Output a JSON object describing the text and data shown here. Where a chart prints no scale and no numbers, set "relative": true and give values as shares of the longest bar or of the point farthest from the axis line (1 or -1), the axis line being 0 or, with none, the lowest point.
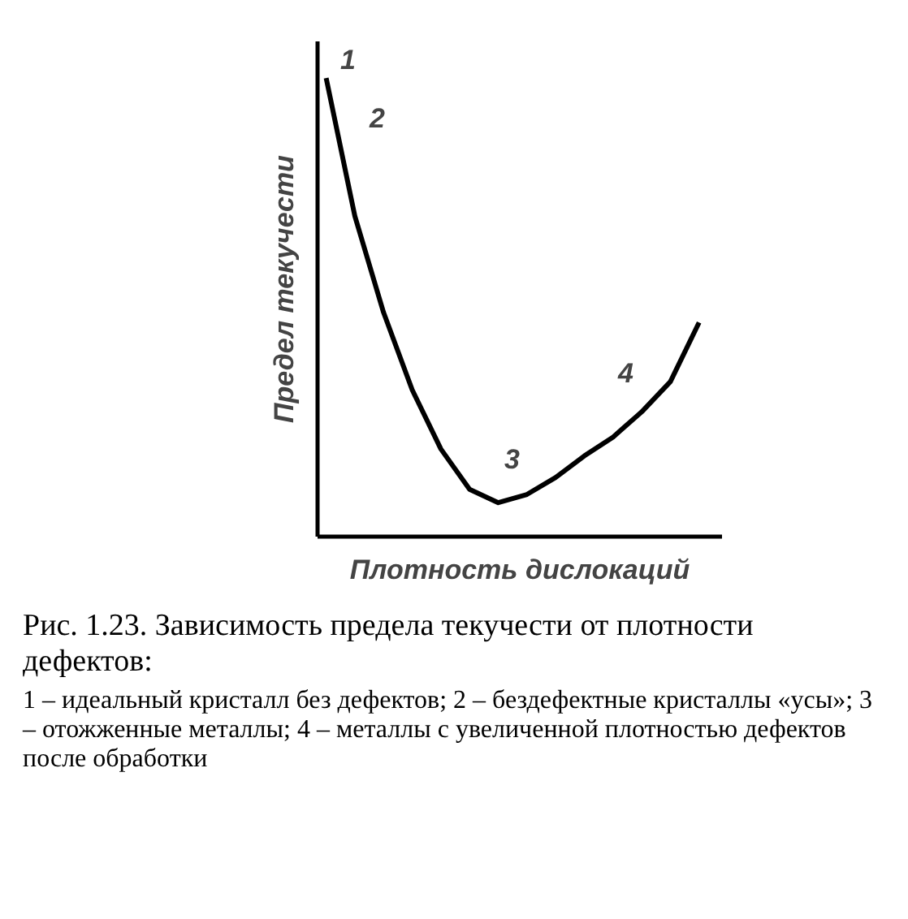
{
  "chart_data": {
    "type": "line",
    "relative": true,
    "xlabel": "Плотность дислокаций",
    "ylabel": "Предел текучести",
    "color": "#000000",
    "marker": "none",
    "grid": false,
    "categories": [
      null,
      null,
      null,
      null,
      null,
      null,
      null,
      null,
      null,
      null,
      null,
      null,
      null,
      null
    ],
    "values": [
      1.0,
      0.699,
      0.489,
      0.32,
      0.191,
      0.103,
      0.074,
      0.092,
      0.129,
      0.176,
      0.217,
      0.272,
      0.338,
      0.467
    ],
    "annotations": [
      "1",
      "2",
      "3",
      "4",
      "Рис. 1.23. Зависимость предела текучести от плотности дефектов:",
      "1 – идеальный кристалл без дефектов; 2 – бездефектные кристаллы «усы»; 3 – отожженные металлы; 4 – металлы с увеличенной плотностью дефектов после обработки"
    ]
  }
}
